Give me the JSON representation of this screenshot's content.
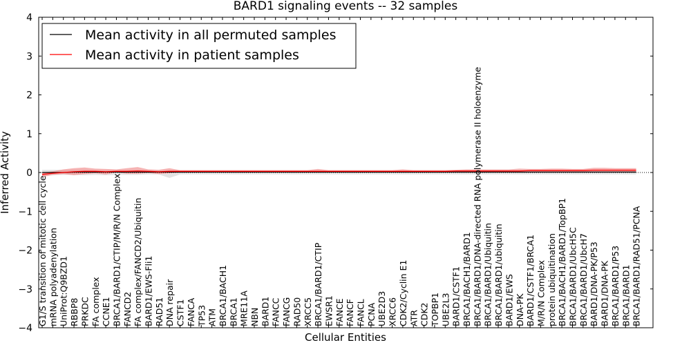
{
  "chart_data": {
    "type": "line",
    "title": "BARD1 signaling events -- 32 samples",
    "xlabel": "Cellular Entities",
    "ylabel": "Inferred Activity",
    "ylim": [
      -4,
      4
    ],
    "yticks": [
      "−4",
      "−3",
      "−2",
      "−1",
      "0",
      "1",
      "2",
      "3",
      "4"
    ],
    "ytick_values": [
      -4,
      -3,
      -2,
      -1,
      0,
      1,
      2,
      3,
      4
    ],
    "legend_position": "top-left",
    "legend": [
      {
        "label": "Mean activity in all permuted samples",
        "color": "#000000"
      },
      {
        "label": "Mean activity in patient samples",
        "color": "#ff0000"
      }
    ],
    "categories": [
      "G1/S transition of mitotic cell cycle",
      "mRNA polyadenylation",
      "UniProt:Q9BZD1",
      "RBBP8",
      "PRKDC",
      "FA complex",
      "CCNE1",
      "BRCA1/BARD1/CTIP/M/R/N Complex",
      "FANCD2",
      "FA complex/FANCD2/Ubiquitin",
      "BARD1/EWS-Fli1",
      "RAD51",
      "DNA repair",
      "CSTF1",
      "FANCA",
      "TP53",
      "ATM",
      "BRCA1/BACH1",
      "BRCA1",
      "MRE11A",
      "NBN",
      "BARD1",
      "FANCC",
      "FANCG",
      "RAD50",
      "XRCC5",
      "BRCA1/BARD1/CTIP",
      "EWSR1",
      "FANCE",
      "FANCF",
      "FANCL",
      "PCNA",
      "UBE2D3",
      "XRCC6",
      "CDK2/Cyclin E1",
      "ATR",
      "CDK2",
      "TOPBP1",
      "UBE2L3",
      "BARD1/CSTF1",
      "BRCA1/BACH1/BARD1",
      "BRCA1/BARD1/DNA-directed RNA polymerase II holoenzyme",
      "BRCA1/BARD1/Ubiquitin",
      "BRCA1/BARD1/ubiquitin",
      "BARD1/EWS",
      "DNA-PK",
      "BARD1/CSTF1/BRCA1",
      "M/R/N Complex",
      "protein ubiquitination",
      "BRCA1/BACH1/BARD1/TopBP1",
      "BRCA1/BARD1/UbcH5C",
      "BRCA1/BARD1/UbcH7",
      "BARD1/DNA-PK/P53",
      "BARD1/DNA-PK",
      "BRCA1/BARD1/P53",
      "BRCA1/BARD1",
      "BRCA1/BARD1/RAD51/PCNA"
    ],
    "series": [
      {
        "name": "Mean activity in all permuted samples",
        "color": "#000000",
        "band_color": "#b0b0b0",
        "values": [
          0.0,
          0.0,
          0.0,
          0.01,
          0.01,
          0.01,
          0.01,
          0.01,
          0.01,
          0.01,
          0.01,
          0.01,
          0.01,
          0.01,
          0.01,
          0.01,
          0.01,
          0.01,
          0.01,
          0.01,
          0.01,
          0.01,
          0.01,
          0.01,
          0.01,
          0.01,
          0.01,
          0.01,
          0.01,
          0.01,
          0.01,
          0.01,
          0.01,
          0.01,
          0.01,
          0.01,
          0.01,
          0.01,
          0.01,
          0.01,
          0.01,
          0.01,
          0.01,
          0.01,
          0.01,
          0.01,
          0.01,
          0.01,
          0.01,
          0.01,
          0.01,
          0.01,
          0.01,
          0.01,
          0.01,
          0.01,
          0.01
        ],
        "lower": [
          -0.08,
          -0.07,
          -0.06,
          -0.06,
          -0.07,
          -0.06,
          -0.07,
          -0.06,
          -0.06,
          -0.06,
          -0.05,
          -0.05,
          -0.14,
          -0.05,
          -0.05,
          -0.05,
          -0.05,
          -0.05,
          -0.05,
          -0.05,
          -0.05,
          -0.05,
          -0.05,
          -0.05,
          -0.05,
          -0.05,
          -0.05,
          -0.05,
          -0.05,
          -0.05,
          -0.05,
          -0.05,
          -0.05,
          -0.05,
          -0.05,
          -0.05,
          -0.05,
          -0.05,
          -0.05,
          -0.05,
          -0.05,
          -0.05,
          -0.05,
          -0.05,
          -0.05,
          -0.05,
          -0.05,
          -0.05,
          -0.05,
          -0.05,
          -0.05,
          -0.05,
          -0.05,
          -0.05,
          -0.05,
          -0.05,
          -0.05
        ],
        "upper": [
          0.07,
          0.07,
          0.07,
          0.07,
          0.07,
          0.06,
          0.06,
          0.06,
          0.06,
          0.06,
          0.06,
          0.06,
          0.06,
          0.06,
          0.06,
          0.06,
          0.06,
          0.06,
          0.06,
          0.06,
          0.06,
          0.06,
          0.06,
          0.06,
          0.06,
          0.06,
          0.06,
          0.06,
          0.06,
          0.06,
          0.06,
          0.06,
          0.06,
          0.06,
          0.06,
          0.06,
          0.06,
          0.06,
          0.06,
          0.06,
          0.06,
          0.06,
          0.06,
          0.06,
          0.06,
          0.06,
          0.06,
          0.06,
          0.06,
          0.06,
          0.06,
          0.06,
          0.06,
          0.06,
          0.06,
          0.06,
          0.06
        ]
      },
      {
        "name": "Mean activity in patient samples",
        "color": "#ff0000",
        "band_color": "#f08080",
        "values": [
          -0.05,
          -0.02,
          0.0,
          0.02,
          0.03,
          0.03,
          0.02,
          0.03,
          0.03,
          0.04,
          0.03,
          0.02,
          0.03,
          0.03,
          0.03,
          0.03,
          0.03,
          0.03,
          0.03,
          0.03,
          0.03,
          0.03,
          0.03,
          0.03,
          0.03,
          0.03,
          0.03,
          0.03,
          0.03,
          0.03,
          0.03,
          0.03,
          0.03,
          0.03,
          0.03,
          0.03,
          0.03,
          0.03,
          0.03,
          0.04,
          0.04,
          0.04,
          0.04,
          0.04,
          0.04,
          0.04,
          0.05,
          0.05,
          0.05,
          0.05,
          0.05,
          0.05,
          0.06,
          0.06,
          0.06,
          0.06,
          0.06
        ],
        "lower": [
          -0.12,
          -0.06,
          -0.04,
          -0.07,
          -0.04,
          -0.02,
          -0.05,
          0.0,
          -0.03,
          -0.03,
          -0.01,
          -0.04,
          -0.02,
          0.0,
          0.0,
          0.0,
          0.0,
          0.0,
          0.0,
          0.0,
          0.0,
          0.0,
          0.0,
          0.0,
          0.0,
          0.0,
          0.0,
          0.0,
          0.0,
          0.0,
          0.0,
          0.0,
          0.0,
          0.0,
          0.0,
          0.0,
          0.0,
          0.0,
          0.0,
          0.0,
          0.0,
          0.0,
          0.0,
          0.0,
          0.0,
          0.0,
          0.0,
          0.0,
          0.0,
          0.0,
          0.0,
          0.0,
          0.01,
          0.01,
          0.01,
          0.01,
          0.01
        ],
        "upper": [
          0.0,
          0.03,
          0.08,
          0.11,
          0.13,
          0.1,
          0.09,
          0.08,
          0.11,
          0.14,
          0.08,
          0.07,
          0.11,
          0.06,
          0.06,
          0.06,
          0.06,
          0.06,
          0.06,
          0.06,
          0.06,
          0.06,
          0.06,
          0.06,
          0.06,
          0.06,
          0.09,
          0.06,
          0.06,
          0.06,
          0.06,
          0.06,
          0.06,
          0.06,
          0.08,
          0.06,
          0.06,
          0.06,
          0.06,
          0.07,
          0.08,
          0.08,
          0.08,
          0.08,
          0.08,
          0.1,
          0.09,
          0.09,
          0.1,
          0.1,
          0.09,
          0.09,
          0.12,
          0.12,
          0.11,
          0.11,
          0.11
        ]
      }
    ]
  }
}
